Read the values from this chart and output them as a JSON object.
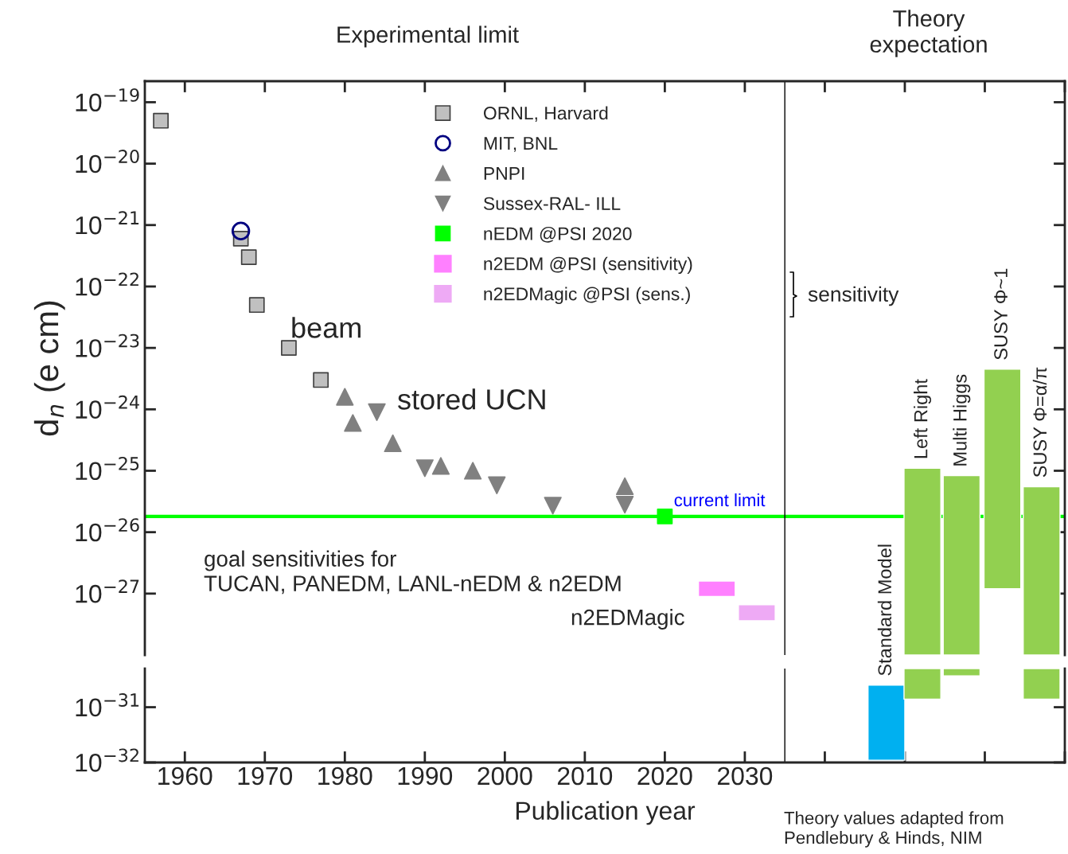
{
  "chart_data": [
    {
      "type": "scatter",
      "ylabel": "d$_{n}$ (e cm)",
      "log": "y",
      "grid": false,
      "legend": "top",
      "tick_labels": "y",
      "xlim": [
        1955,
        2070
      ],
      "xticks": [
        1960,
        1970,
        1980,
        1990,
        2000,
        2010,
        2020,
        2030,
        {
          "value": 2040,
          "label": null
        },
        {
          "value": 2050,
          "label": null
        },
        {
          "value": 2060,
          "label": null
        },
        {
          "value": 2070,
          "label": null
        }
      ],
      "ylim": [
        1e-28,
        2.2e-19
      ],
      "yticks": [
        {
          "value": 1e-19,
          "label": "10$^{−19}$"
        },
        {
          "value": 1e-20,
          "label": "10$^{−20}$"
        },
        {
          "value": 1e-21,
          "label": "10$^{−21}$"
        },
        {
          "value": 1e-22,
          "label": "10$^{−22}$"
        },
        {
          "value": 1e-23,
          "label": "10$^{−23}$"
        },
        {
          "value": 1e-24,
          "label": "10$^{−24}$"
        },
        {
          "value": 1e-25,
          "label": "10$^{−25}$"
        },
        {
          "value": 1e-26,
          "label": "10$^{−26}$"
        },
        {
          "value": 1e-27,
          "label": "10$^{−27}$"
        }
      ],
      "series": [
        {
          "name": "ORNL, Harvard",
          "marker": "square",
          "color": "#c0c0c0",
          "x": [
            1957,
            1967,
            1968,
            1969,
            1973,
            1977
          ],
          "values": [
            5e-20,
            6e-22,
            3e-22,
            5e-23,
            1e-23,
            3e-24
          ]
        },
        {
          "name": "MIT, BNL",
          "marker": "circle",
          "color": "#000080",
          "x": [
            1967
          ],
          "values": [
            8e-22
          ]
        },
        {
          "name": "PNPI",
          "marker": "triangle",
          "color": "#808080",
          "x": [
            1980,
            1981,
            1986,
            1992,
            1996,
            2015
          ],
          "values": [
            1.6e-24,
            6e-25,
            2.8e-25,
            1.2e-25,
            1e-25,
            5.6e-26
          ]
        },
        {
          "name": "Sussex-RAL- ILL",
          "marker": "triangle_down",
          "color": "#808080",
          "x": [
            1984,
            1990,
            1999,
            2006,
            2015
          ],
          "values": [
            9e-25,
            1.1e-25,
            5.8e-26,
            2.7e-26,
            2.8e-26
          ]
        },
        {
          "name": "nEDM @PSI 2020",
          "marker": "square",
          "color": "#00ff00",
          "x": [
            2020
          ],
          "values": [
            1.8e-26
          ]
        },
        {
          "name": "n2EDM @PSI (sensitivity)",
          "type": "bar",
          "marker": "square",
          "color": "#ff80ff",
          "x": [
            2026.5
          ],
          "base": [
            9e-28
          ],
          "values": [
            7e-28
          ]
        },
        {
          "name": "n2EDMagic @PSI (sens.)",
          "type": "bar",
          "marker": "square",
          "color": "#eeaaf5",
          "x": [
            2031.5
          ],
          "base": [
            3.6e-28
          ],
          "values": [
            3e-28
          ]
        },
        {
          "name": "Left Right",
          "type": "bar",
          "color": "#92d050",
          "x": [
            2052.2
          ],
          "base": [
            1e-28
          ],
          "values": [
            1.1e-25
          ]
        },
        {
          "name": "Multi Higgs",
          "type": "bar",
          "color": "#92d050",
          "x": [
            2057.1
          ],
          "base": [
            1e-28
          ],
          "values": [
            8.3e-26
          ]
        },
        {
          "name": "SUSY Φ~1",
          "type": "bar",
          "color": "#92d050",
          "x": [
            2062.2
          ],
          "base": [
            1.2e-27
          ],
          "values": [
            4.5e-24
          ]
        },
        {
          "name": "SUSY Φ=α/π",
          "type": "bar",
          "color": "#92d050",
          "x": [
            2067.1
          ],
          "base": [
            1e-28
          ],
          "values": [
            5.5e-26
          ]
        }
      ],
      "ref_lines": [
        {
          "axis": "y",
          "value": 1.8e-26,
          "label": "current limit",
          "color": "#00ff00"
        },
        {
          "axis": "x",
          "value": 2035,
          "label": null,
          "color": "#000000"
        }
      ],
      "annotations": [
        "Experimental limit",
        "Theory\nexpectation",
        "beam",
        "stored UCN",
        "goal sensitivities for\nTUCAN, PANEDM, LANL-nEDM & n2EDM",
        "n2EDMagic",
        "sensitivity",
        "Theory values adapted from\nPendlebury & Hinds, NIM"
      ]
    },
    {
      "type": "bar",
      "xlabel": "Publication year",
      "log": "y",
      "grid": false,
      "xlim": [
        1955,
        2070
      ],
      "xticks": [
        1960,
        1970,
        1980,
        1990,
        2000,
        2010,
        2020,
        2030,
        {
          "value": 2040,
          "label": null
        },
        {
          "value": 2050,
          "label": null
        },
        {
          "value": 2060,
          "label": null
        },
        {
          "value": 2070,
          "label": null
        }
      ],
      "ylim": [
        1e-32,
        5e-31
      ],
      "yticks": [
        {
          "value": 1e-31,
          "label": "10$^{−31}$"
        },
        {
          "value": 1e-32,
          "label": "10$^{−32}$"
        }
      ],
      "series": [
        {
          "name": "Standard Model",
          "color": "#00b0f0",
          "x": [
            2047.7
          ],
          "base": [
            1.1e-32
          ],
          "values": [
            2.4e-31
          ]
        },
        {
          "color": "#92d050",
          "x": [
            2052.2
          ],
          "base": [
            1.4e-31
          ],
          "values": [
            3.6e-31
          ]
        },
        {
          "color": "#92d050",
          "x": [
            2057.1
          ],
          "base": [
            3.7e-31
          ],
          "values": [
            1.3e-31
          ]
        },
        {
          "color": "#92d050",
          "x": [
            2067.1
          ],
          "base": [
            1.4e-31
          ],
          "values": [
            3.6e-31
          ]
        }
      ],
      "ref_lines": [
        {
          "axis": "x",
          "value": 2035,
          "label": null,
          "color": "#000000"
        }
      ]
    }
  ]
}
